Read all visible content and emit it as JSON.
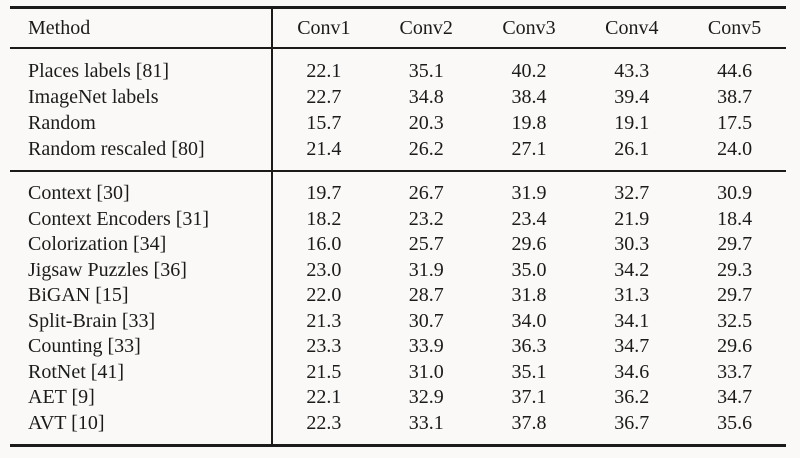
{
  "table": {
    "columns": [
      "Method",
      "Conv1",
      "Conv2",
      "Conv3",
      "Conv4",
      "Conv5"
    ],
    "sections": [
      {
        "rows": [
          {
            "method": "Places labels [81]",
            "values": [
              "22.1",
              "35.1",
              "40.2",
              "43.3",
              "44.6"
            ]
          },
          {
            "method": "ImageNet labels",
            "values": [
              "22.7",
              "34.8",
              "38.4",
              "39.4",
              "38.7"
            ]
          },
          {
            "method": "Random",
            "values": [
              "15.7",
              "20.3",
              "19.8",
              "19.1",
              "17.5"
            ]
          },
          {
            "method": "Random rescaled [80]",
            "values": [
              "21.4",
              "26.2",
              "27.1",
              "26.1",
              "24.0"
            ]
          }
        ]
      },
      {
        "rows": [
          {
            "method": "Context [30]",
            "values": [
              "19.7",
              "26.7",
              "31.9",
              "32.7",
              "30.9"
            ]
          },
          {
            "method": "Context Encoders [31]",
            "values": [
              "18.2",
              "23.2",
              "23.4",
              "21.9",
              "18.4"
            ]
          },
          {
            "method": "Colorization [34]",
            "values": [
              "16.0",
              "25.7",
              "29.6",
              "30.3",
              "29.7"
            ]
          },
          {
            "method": "Jigsaw Puzzles [36]",
            "values": [
              "23.0",
              "31.9",
              "35.0",
              "34.2",
              "29.3"
            ]
          },
          {
            "method": "BiGAN [15]",
            "values": [
              "22.0",
              "28.7",
              "31.8",
              "31.3",
              "29.7"
            ]
          },
          {
            "method": "Split-Brain [33]",
            "values": [
              "21.3",
              "30.7",
              "34.0",
              "34.1",
              "32.5"
            ]
          },
          {
            "method": "Counting [33]",
            "values": [
              "23.3",
              "33.9",
              "36.3",
              "34.7",
              "29.6"
            ]
          },
          {
            "method": "RotNet [41]",
            "values": [
              "21.5",
              "31.0",
              "35.1",
              "34.6",
              "33.7"
            ]
          },
          {
            "method": "AET [9]",
            "values": [
              "22.1",
              "32.9",
              "37.1",
              "36.2",
              "34.7"
            ]
          },
          {
            "method": "AVT [10]",
            "values": [
              "22.3",
              "33.1",
              "37.8",
              "36.7",
              "35.6"
            ]
          }
        ]
      }
    ],
    "colors": {
      "ink": "#1b1b1b",
      "rule": "#1b1b1b",
      "background": "#faf9f7"
    }
  }
}
